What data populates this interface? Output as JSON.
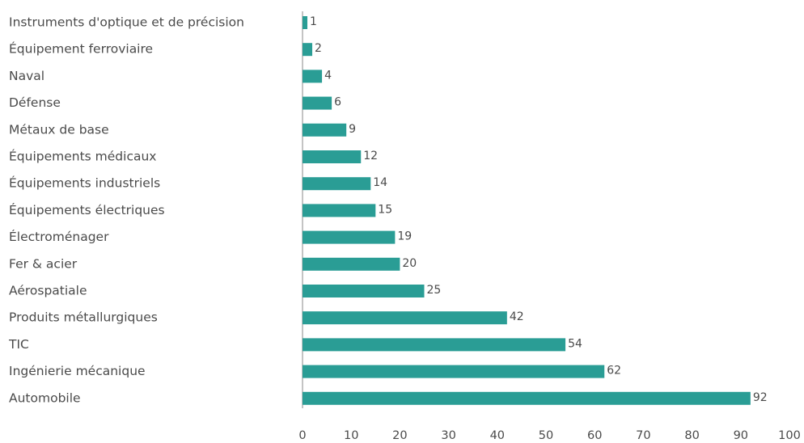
{
  "chart_data": {
    "type": "bar",
    "orientation": "horizontal",
    "categories": [
      "Instruments d'optique et de précision",
      "Équipement ferroviaire",
      "Naval",
      "Défense",
      "Métaux de base",
      "Équipements médicaux",
      "Équipements industriels",
      "Équipements électriques",
      "Électroménager",
      "Fer & acier",
      "Aérospatiale",
      "Produits métallurgiques",
      "TIC",
      "Ingénierie mécanique",
      "Automobile"
    ],
    "values": [
      1,
      2,
      4,
      6,
      9,
      12,
      14,
      15,
      19,
      20,
      25,
      42,
      54,
      62,
      92
    ],
    "xlim": [
      0,
      100
    ],
    "xticks": [
      0,
      10,
      20,
      30,
      40,
      50,
      60,
      70,
      80,
      90,
      100
    ],
    "bar_color": "#2a9d95",
    "axis_color": "#b0b0b0",
    "grid": false,
    "legend": "none",
    "title": "",
    "xlabel": "",
    "ylabel": ""
  }
}
